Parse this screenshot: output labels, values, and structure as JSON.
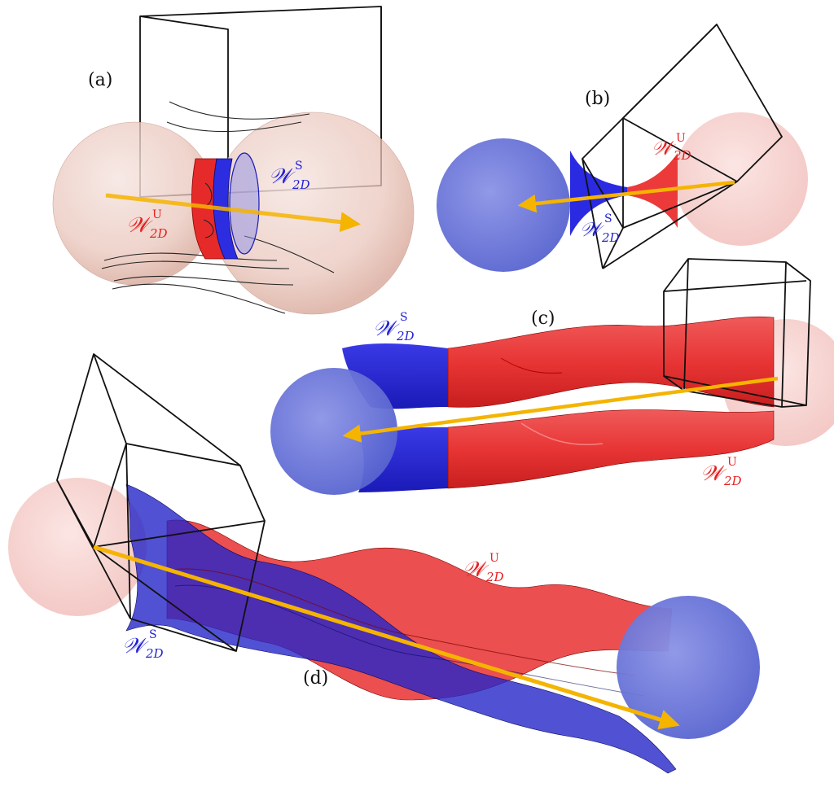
{
  "panels": [
    {
      "label": "(a)"
    },
    {
      "label": "(b)"
    },
    {
      "label": "(c)"
    },
    {
      "label": "(d)"
    }
  ],
  "manifold_labels": {
    "stable": {
      "script": "𝒲",
      "sup": "S",
      "sub": "2D"
    },
    "unstable": {
      "script": "𝒲",
      "sup": "U",
      "sub": "2D"
    }
  },
  "colors": {
    "stable": "#1f1fd6",
    "unstable": "#e61e1e",
    "arrow": "#f4b400",
    "stable_sphere": "#6f7bd8",
    "unstable_sphere": "#f3c9c6",
    "frame": "#111111"
  }
}
